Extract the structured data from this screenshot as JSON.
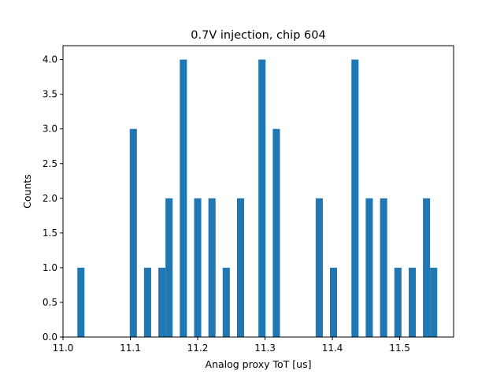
{
  "chart_data": {
    "type": "bar",
    "title": "0.7V injection, chip 604",
    "xlabel": "Analog proxy ToT [us]",
    "ylabel": "Counts",
    "xlim": [
      11.0,
      11.58
    ],
    "ylim": [
      0,
      4.2
    ],
    "bar_width": 0.0106,
    "bar_color": "#1f77b4",
    "x_ticks": [
      "11.0",
      "11.1",
      "11.2",
      "11.3",
      "11.4",
      "11.5"
    ],
    "x_tick_values": [
      11.0,
      11.1,
      11.2,
      11.3,
      11.4,
      11.5
    ],
    "y_ticks": [
      "0.0",
      "0.5",
      "1.0",
      "1.5",
      "2.0",
      "2.5",
      "3.0",
      "3.5",
      "4.0"
    ],
    "y_tick_values": [
      0.0,
      0.5,
      1.0,
      1.5,
      2.0,
      2.5,
      3.0,
      3.5,
      4.0
    ],
    "bins": [
      {
        "x": 11.0213,
        "count": 1
      },
      {
        "x": 11.0991,
        "count": 3
      },
      {
        "x": 11.1203,
        "count": 1
      },
      {
        "x": 11.1416,
        "count": 1
      },
      {
        "x": 11.1522,
        "count": 2
      },
      {
        "x": 11.1734,
        "count": 4
      },
      {
        "x": 11.1947,
        "count": 2
      },
      {
        "x": 11.2159,
        "count": 2
      },
      {
        "x": 11.2371,
        "count": 1
      },
      {
        "x": 11.2584,
        "count": 2
      },
      {
        "x": 11.2902,
        "count": 4
      },
      {
        "x": 11.3115,
        "count": 3
      },
      {
        "x": 11.3752,
        "count": 2
      },
      {
        "x": 11.3964,
        "count": 1
      },
      {
        "x": 11.4283,
        "count": 4
      },
      {
        "x": 11.4495,
        "count": 2
      },
      {
        "x": 11.4708,
        "count": 2
      },
      {
        "x": 11.492,
        "count": 1
      },
      {
        "x": 11.5133,
        "count": 1
      },
      {
        "x": 11.5345,
        "count": 2
      },
      {
        "x": 11.5451,
        "count": 1
      }
    ]
  }
}
